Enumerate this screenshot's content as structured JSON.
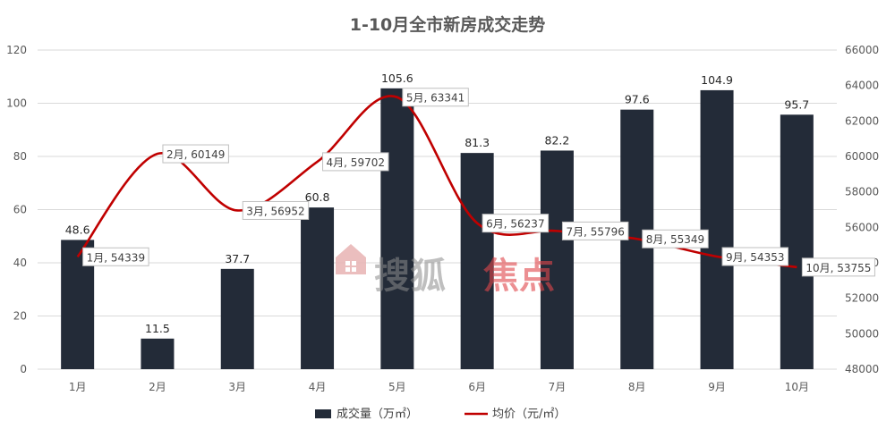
{
  "watermark": {
    "text_gray": "搜狐",
    "text_red": "焦点",
    "icon": "house-logo-icon"
  },
  "colors": {
    "bar": "#232b38",
    "line": "#c00000",
    "grid": "#d9d9d9",
    "axis_text": "#595959",
    "watermark_red": "#e0464b",
    "watermark_gray": "#8c8c8c"
  },
  "chart_data": {
    "type": "bar",
    "title": "1-10月全市新房成交走势",
    "categories": [
      "1月",
      "2月",
      "3月",
      "4月",
      "5月",
      "6月",
      "7月",
      "8月",
      "9月",
      "10月"
    ],
    "series": [
      {
        "name": "成交量（万㎡）",
        "type": "bar",
        "axis": "left",
        "values": [
          48.6,
          11.5,
          37.7,
          60.8,
          105.6,
          81.3,
          82.2,
          97.6,
          104.9,
          95.7
        ]
      },
      {
        "name": "均价（元/㎡）",
        "type": "line",
        "axis": "right",
        "smooth": true,
        "values": [
          54339,
          60149,
          56952,
          59702,
          63341,
          56237,
          55796,
          55349,
          54353,
          53755
        ]
      }
    ],
    "point_labels": [
      "1月, 54339",
      "2月, 60149",
      "3月, 56952",
      "4月, 59702",
      "5月, 63341",
      "6月, 56237",
      "7月, 55796",
      "8月, 55349",
      "9月, 54353",
      "10月, 53755"
    ],
    "y_left": {
      "min": 0,
      "max": 120,
      "ticks": [
        "0",
        "20",
        "40",
        "60",
        "80",
        "100",
        "120"
      ]
    },
    "y_right": {
      "min": 48000,
      "max": 66000,
      "ticks": [
        "48000",
        "50000",
        "52000",
        "54000",
        "56000",
        "58000",
        "60000",
        "62000",
        "64000",
        "66000"
      ]
    },
    "grid": true,
    "legend": "bottom"
  }
}
